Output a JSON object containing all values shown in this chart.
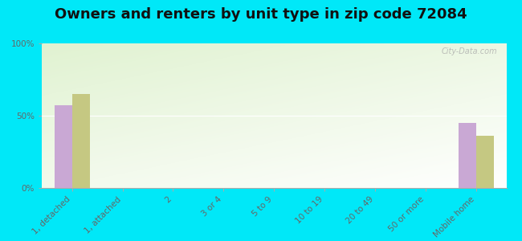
{
  "title": "Owners and renters by unit type in zip code 72084",
  "categories": [
    "1, detached",
    "1, attached",
    "2",
    "3 or 4",
    "5 to 9",
    "10 to 19",
    "20 to 49",
    "50 or more",
    "Mobile home"
  ],
  "owner_values": [
    57,
    0,
    0,
    0,
    0,
    0,
    0,
    0,
    45
  ],
  "renter_values": [
    65,
    0,
    0,
    0,
    0,
    0,
    0,
    0,
    36
  ],
  "owner_color": "#c9a8d4",
  "renter_color": "#c5c882",
  "background_outer": "#00e8f8",
  "yticks": [
    0,
    50,
    100
  ],
  "ylim": [
    0,
    100
  ],
  "ylabel_labels": [
    "0%",
    "50%",
    "100%"
  ],
  "bar_width": 0.35,
  "title_fontsize": 13,
  "tick_fontsize": 7.5,
  "watermark": "City-Data.com"
}
